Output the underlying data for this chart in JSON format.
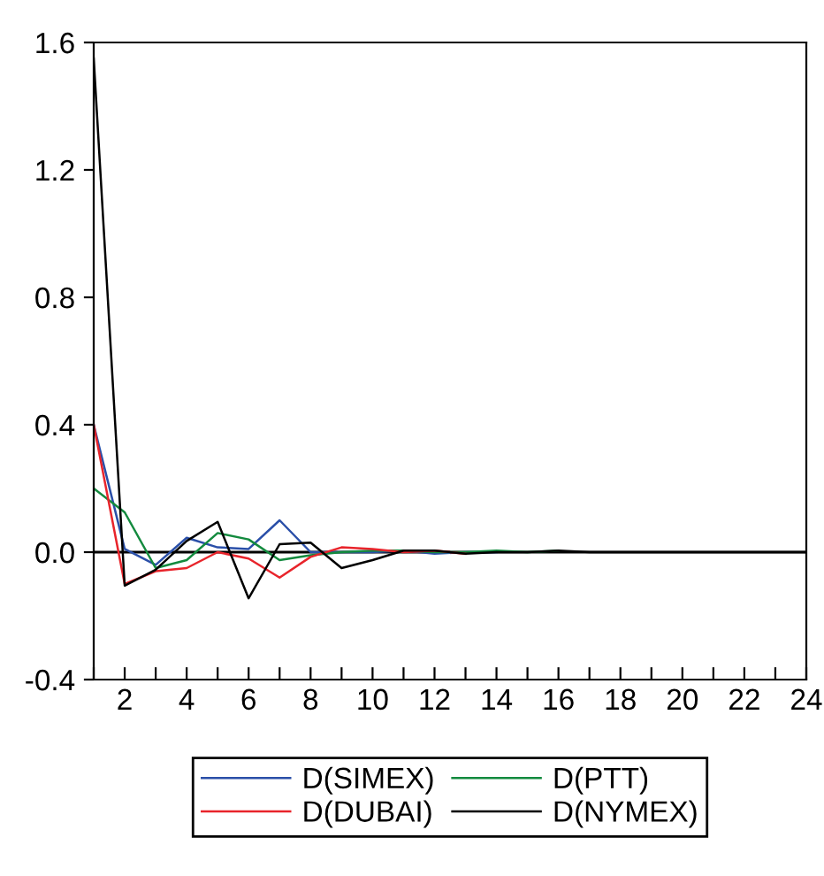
{
  "chart_data": {
    "type": "line",
    "x": [
      1,
      2,
      3,
      4,
      5,
      6,
      7,
      8,
      9,
      10,
      11,
      12,
      13,
      14,
      15,
      16,
      17,
      18,
      19,
      20,
      21,
      22,
      23,
      24
    ],
    "series": [
      {
        "name": "D(SIMEX)",
        "color": "#2a4fa8",
        "values": [
          0.4,
          0.01,
          -0.04,
          0.045,
          0.015,
          0.01,
          0.1,
          0.0,
          0.0,
          0.0,
          0.005,
          -0.005,
          0.0,
          0.0,
          null,
          null,
          null,
          null,
          null,
          null,
          null,
          null,
          null,
          null
        ]
      },
      {
        "name": "D(PTT)",
        "color": "#138a3e",
        "values": [
          0.2,
          0.125,
          -0.05,
          -0.025,
          0.06,
          0.04,
          -0.025,
          -0.01,
          0.0,
          0.005,
          0.005,
          0.0,
          0.0,
          0.005,
          0.0,
          0.005,
          null,
          null,
          null,
          null,
          null,
          null,
          null,
          null
        ]
      },
      {
        "name": "D(DUBAI)",
        "color": "#e8242b",
        "values": [
          0.4,
          -0.1,
          -0.06,
          -0.05,
          0.0,
          -0.02,
          -0.08,
          -0.015,
          0.015,
          0.01,
          0.0,
          0.005,
          -0.005,
          null,
          null,
          null,
          null,
          null,
          null,
          null,
          null,
          null,
          null,
          null
        ]
      },
      {
        "name": "D(NYMEX)",
        "color": "#000000",
        "values": [
          1.55,
          -0.105,
          -0.055,
          0.035,
          0.095,
          -0.145,
          0.025,
          0.03,
          -0.05,
          -0.025,
          0.005,
          0.005,
          -0.005,
          0.0,
          0.0,
          0.005,
          0.0,
          0.0,
          0.0,
          0.0,
          0.0,
          0.0,
          0.0,
          0.0
        ]
      }
    ],
    "xlim": [
      1,
      24
    ],
    "ylim": [
      -0.4,
      1.6
    ],
    "xticks": [
      {
        "value": 1,
        "label": null
      },
      2,
      {
        "value": 3,
        "label": null
      },
      4,
      {
        "value": 5,
        "label": null
      },
      6,
      {
        "value": 7,
        "label": null
      },
      8,
      {
        "value": 9,
        "label": null
      },
      10,
      {
        "value": 11,
        "label": null
      },
      12,
      {
        "value": 13,
        "label": null
      },
      14,
      {
        "value": 15,
        "label": null
      },
      16,
      {
        "value": 17,
        "label": null
      },
      18,
      {
        "value": 19,
        "label": null
      },
      20,
      {
        "value": 21,
        "label": null
      },
      22,
      {
        "value": 23,
        "label": null
      },
      24
    ],
    "yticks": [
      {
        "value": -0.4,
        "label": "-0.4"
      },
      {
        "value": 0.0,
        "label": "0.0"
      },
      {
        "value": 0.4,
        "label": "0.4"
      },
      {
        "value": 0.8,
        "label": "0.8"
      },
      {
        "value": 1.2,
        "label": "1.2"
      },
      {
        "value": 1.6,
        "label": "1.6"
      }
    ],
    "ref_lines": [
      {
        "axis": "y",
        "value": 0,
        "color": "#000000"
      }
    ],
    "legend": "bottom",
    "grid": false,
    "marker": "none",
    "line_style": "solid"
  }
}
